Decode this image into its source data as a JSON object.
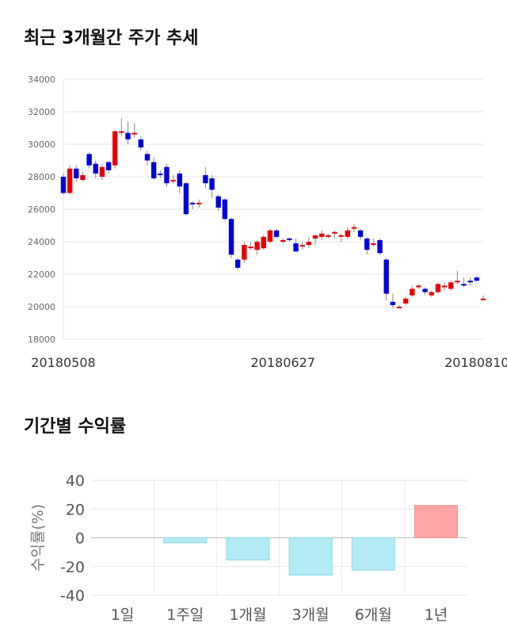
{
  "titles": {
    "price": "최근 3개월간 주가 추세",
    "returns": "기간별 수익률"
  },
  "chart_data": [
    {
      "type": "candlestick",
      "ylim": [
        18000,
        34000
      ],
      "yticks": [
        18000,
        20000,
        22000,
        24000,
        26000,
        28000,
        30000,
        32000,
        34000
      ],
      "xtick_labels": [
        {
          "index": 0,
          "label": "20180508"
        },
        {
          "index": 34,
          "label": "20180627"
        },
        {
          "index": 64,
          "label": "20180810"
        }
      ],
      "colors": {
        "up": "#e60000",
        "down": "#0000dd"
      },
      "candles": [
        [
          28000,
          27000,
          28200,
          26900
        ],
        [
          27000,
          28500,
          28700,
          26900
        ],
        [
          28500,
          27900,
          28700,
          27700
        ],
        [
          27800,
          28100,
          28300,
          27700
        ],
        [
          29400,
          28700,
          29500,
          28500
        ],
        [
          28800,
          28200,
          29000,
          27900
        ],
        [
          28000,
          28600,
          28800,
          27800
        ],
        [
          28900,
          28400,
          29000,
          28200
        ],
        [
          28700,
          30800,
          30900,
          28500
        ],
        [
          30800,
          30800,
          31600,
          30500
        ],
        [
          30700,
          30300,
          31400,
          30000
        ],
        [
          30600,
          30700,
          31300,
          30400
        ],
        [
          30300,
          29800,
          30500,
          29600
        ],
        [
          29400,
          29000,
          29600,
          28700
        ],
        [
          28900,
          27900,
          29200,
          27800
        ],
        [
          28200,
          28100,
          28400,
          27900
        ],
        [
          28600,
          27600,
          28800,
          27400
        ],
        [
          27800,
          27800,
          28100,
          27600
        ],
        [
          28200,
          27400,
          28400,
          27000
        ],
        [
          27600,
          25700,
          27700,
          25600
        ],
        [
          26400,
          26300,
          26500,
          26000
        ],
        [
          26300,
          26400,
          26600,
          26100
        ],
        [
          28100,
          27600,
          28600,
          27300
        ],
        [
          27900,
          27200,
          28100,
          26700
        ],
        [
          26800,
          26100,
          26900,
          25900
        ],
        [
          26600,
          25400,
          26700,
          25300
        ],
        [
          25400,
          23200,
          25500,
          23000
        ],
        [
          22900,
          22400,
          23000,
          22300
        ],
        [
          22900,
          23800,
          24000,
          22700
        ],
        [
          23700,
          23700,
          24000,
          23500
        ],
        [
          23500,
          24000,
          24100,
          23200
        ],
        [
          23600,
          24300,
          24400,
          23500
        ],
        [
          24000,
          24700,
          24800,
          23900
        ],
        [
          24700,
          24300,
          24800,
          24200
        ],
        [
          24000,
          24100,
          24200,
          23900
        ],
        [
          24200,
          24100,
          24300,
          24000
        ],
        [
          23900,
          23400,
          24200,
          23400
        ],
        [
          23700,
          23800,
          24000,
          23500
        ],
        [
          23800,
          24000,
          24300,
          23600
        ],
        [
          24200,
          24400,
          24400,
          23800
        ],
        [
          24300,
          24500,
          24700,
          24100
        ],
        [
          24300,
          24400,
          24500,
          24200
        ],
        [
          24500,
          24600,
          24700,
          24200
        ],
        [
          24400,
          24400,
          24500,
          24000
        ],
        [
          24300,
          24700,
          24900,
          24200
        ],
        [
          24800,
          24900,
          25100,
          24600
        ],
        [
          24700,
          24300,
          24800,
          24100
        ],
        [
          24200,
          23500,
          24300,
          23200
        ],
        [
          23800,
          23900,
          24200,
          23700
        ],
        [
          24100,
          23300,
          24200,
          23200
        ],
        [
          22900,
          20800,
          23000,
          20400
        ],
        [
          20300,
          20100,
          20800,
          19900
        ],
        [
          20000,
          20000,
          20100,
          19900
        ],
        [
          20200,
          20500,
          20600,
          20100
        ],
        [
          20700,
          21100,
          21300,
          20600
        ],
        [
          21200,
          21300,
          21400,
          21100
        ],
        [
          21100,
          20900,
          21200,
          20700
        ],
        [
          20700,
          20900,
          21000,
          20600
        ],
        [
          20900,
          21400,
          21500,
          20800
        ],
        [
          21200,
          21300,
          21500,
          21000
        ],
        [
          21100,
          21500,
          21600,
          21000
        ],
        [
          21500,
          21600,
          22200,
          21400
        ],
        [
          21400,
          21300,
          21800,
          21200
        ],
        [
          21600,
          21500,
          21800,
          21300
        ],
        [
          21800,
          21600,
          21900,
          21500
        ],
        [
          20500,
          20500,
          20700,
          20400
        ]
      ]
    },
    {
      "type": "bar",
      "ylabel": "수익률(%)",
      "ylim": [
        -40,
        40
      ],
      "yticks": [
        -40,
        -20,
        0,
        20,
        40
      ],
      "categories": [
        "1일",
        "1주일",
        "1개월",
        "3개월",
        "6개월",
        "1년"
      ],
      "values": [
        0,
        -3.5,
        -15.5,
        -26,
        -22.5,
        22.5
      ],
      "colors": {
        "positive": "#ffa7a7",
        "negative": "#b2ebf4",
        "positive_edge": "#f28b8b",
        "negative_edge": "#8ed7e3"
      }
    }
  ]
}
